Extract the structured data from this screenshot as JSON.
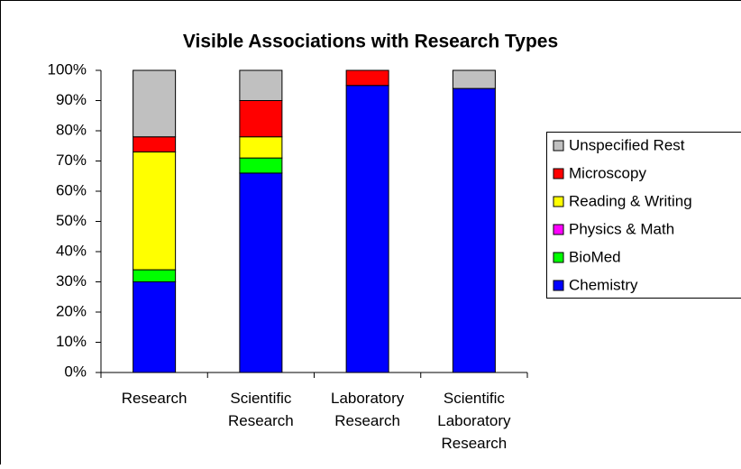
{
  "chart_data": {
    "type": "stacked_bar",
    "title": "Visible Associations with Research Types",
    "categories": [
      "Research",
      "Scientific Research",
      "Laboratory Research",
      "Scientific Laboratory Research"
    ],
    "series": [
      {
        "name": "Chemistry",
        "color": "#0000ff",
        "values": [
          30,
          66,
          95,
          94
        ]
      },
      {
        "name": "BioMed",
        "color": "#00ff00",
        "values": [
          4,
          5,
          0,
          0
        ]
      },
      {
        "name": "Physics & Math",
        "color": "#ff00ff",
        "values": [
          0,
          0,
          0,
          0
        ]
      },
      {
        "name": "Reading & Writing",
        "color": "#ffff00",
        "values": [
          39,
          7,
          0,
          0
        ]
      },
      {
        "name": "Microscopy",
        "color": "#ff0000",
        "values": [
          5,
          12,
          5,
          0
        ]
      },
      {
        "name": "Unspecified Rest",
        "color": "#c0c0c0",
        "values": [
          22,
          10,
          0,
          6
        ]
      }
    ],
    "ylim": [
      0,
      100
    ],
    "yticks": [
      {
        "value": 0,
        "label": "0%"
      },
      {
        "value": 10,
        "label": "10%"
      },
      {
        "value": 20,
        "label": "20%"
      },
      {
        "value": 30,
        "label": "30%"
      },
      {
        "value": 40,
        "label": "40%"
      },
      {
        "value": 50,
        "label": "50%"
      },
      {
        "value": 60,
        "label": "60%"
      },
      {
        "value": 70,
        "label": "70%"
      },
      {
        "value": 80,
        "label": "80%"
      },
      {
        "value": 90,
        "label": "90%"
      },
      {
        "value": 100,
        "label": "100%"
      }
    ],
    "legend": "right"
  }
}
